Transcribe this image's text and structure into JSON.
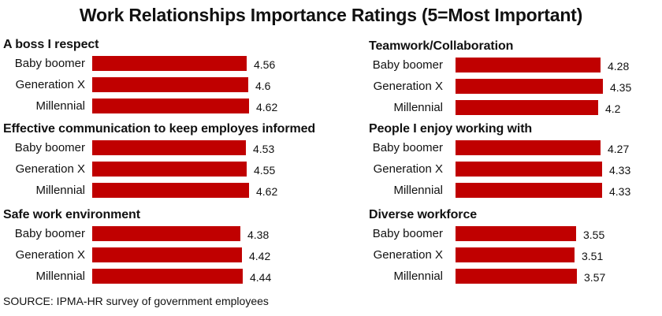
{
  "title": "Work Relationships Importance Ratings (5=Most Important)",
  "source": "SOURCE: IPMA-HR survey of government employees",
  "colors": {
    "bar": "#c00000"
  },
  "chart_data": [
    {
      "type": "bar",
      "title": "A boss I respect",
      "orientation": "horizontal",
      "categories": [
        "Baby boomer",
        "Generation X",
        "Millennial"
      ],
      "values": [
        4.56,
        4.6,
        4.62
      ],
      "value_labels": [
        "4.56",
        "4.6",
        "4.62"
      ]
    },
    {
      "type": "bar",
      "title": "Effective communication to keep employes informed",
      "orientation": "horizontal",
      "categories": [
        "Baby boomer",
        "Generation X",
        "Millennial"
      ],
      "values": [
        4.53,
        4.55,
        4.62
      ],
      "value_labels": [
        "4.53",
        "4.55",
        "4.62"
      ]
    },
    {
      "type": "bar",
      "title": "Safe work environment",
      "orientation": "horizontal",
      "categories": [
        "Baby boomer",
        "Generation X",
        "Millennial"
      ],
      "values": [
        4.38,
        4.42,
        4.44
      ],
      "value_labels": [
        "4.38",
        "4.42",
        "4.44"
      ]
    },
    {
      "type": "bar",
      "title": "Teamwork/Collaboration",
      "orientation": "horizontal",
      "categories": [
        "Baby boomer",
        "Generation X",
        "Millennial"
      ],
      "values": [
        4.28,
        4.35,
        4.2
      ],
      "value_labels": [
        "4.28",
        "4.35",
        "4.2"
      ]
    },
    {
      "type": "bar",
      "title": "People I enjoy working with",
      "orientation": "horizontal",
      "categories": [
        "Baby boomer",
        "Generation X",
        "Millennial"
      ],
      "values": [
        4.27,
        4.33,
        4.33
      ],
      "value_labels": [
        "4.27",
        "4.33",
        "4.33"
      ]
    },
    {
      "type": "bar",
      "title": "Diverse workforce",
      "orientation": "horizontal",
      "categories": [
        "Baby boomer",
        "Generation X",
        "Millennial"
      ],
      "values": [
        3.55,
        3.51,
        3.57
      ],
      "value_labels": [
        "3.55",
        "3.51",
        "3.57"
      ]
    }
  ]
}
